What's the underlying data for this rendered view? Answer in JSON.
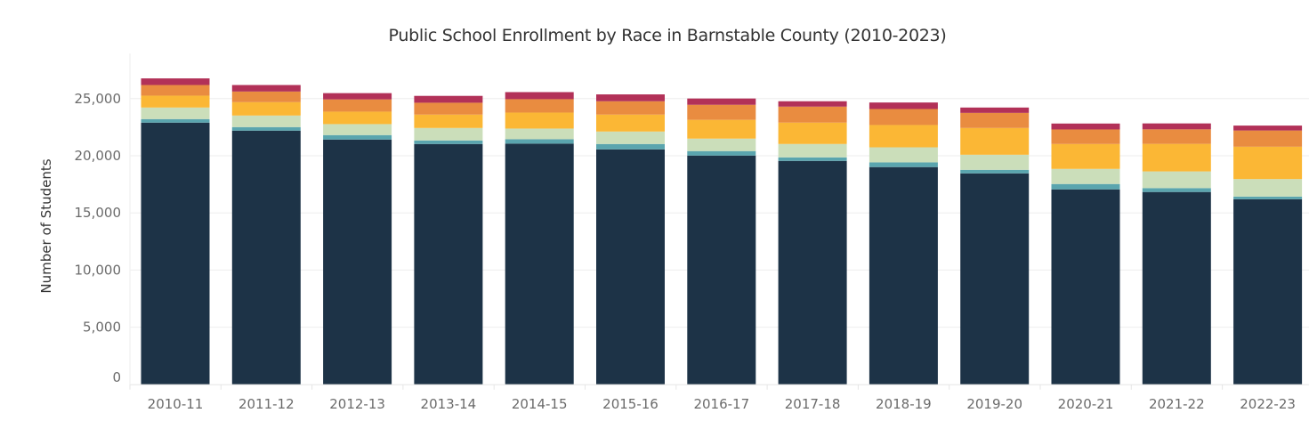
{
  "chart_data": {
    "type": "bar",
    "stacked": true,
    "title": "Public School Enrollment by Race in Barnstable County (2010-2023)",
    "xlabel": "",
    "ylabel": "Number of Students",
    "ylim": [
      0,
      27000
    ],
    "yticks": [
      0,
      5000,
      10000,
      15000,
      20000,
      25000
    ],
    "ytick_labels": [
      "0",
      "5,000",
      "10,000",
      "15,000",
      "20,000",
      "25,000"
    ],
    "grid": true,
    "legend": "none",
    "categories": [
      "2010-11",
      "2011-12",
      "2012-13",
      "2013-14",
      "2014-15",
      "2015-16",
      "2016-17",
      "2017-18",
      "2018-19",
      "2019-20",
      "2020-21",
      "2021-22",
      "2022-23"
    ],
    "series": [
      {
        "color": "#1d3347",
        "values": [
          22900,
          22200,
          21420,
          21030,
          21060,
          20560,
          20020,
          19550,
          19010,
          18460,
          17060,
          16830,
          16200
        ]
      },
      {
        "color": "#5aa5ae",
        "values": [
          310,
          310,
          390,
          310,
          390,
          470,
          390,
          310,
          410,
          310,
          470,
          340,
          230
        ]
      },
      {
        "color": "#cbdeba",
        "values": [
          1010,
          1010,
          960,
          1090,
          930,
          1090,
          1090,
          1170,
          1320,
          1320,
          1320,
          1460,
          1530
        ]
      },
      {
        "color": "#fbb735",
        "values": [
          1040,
          1170,
          1090,
          1170,
          1400,
          1480,
          1640,
          1870,
          1950,
          2340,
          2180,
          2410,
          2830
        ]
      },
      {
        "color": "#e98c40",
        "values": [
          930,
          930,
          1070,
          1040,
          1170,
          1170,
          1320,
          1400,
          1400,
          1320,
          1270,
          1270,
          1420
        ]
      },
      {
        "color": "#b23158",
        "values": [
          580,
          570,
          550,
          600,
          620,
          600,
          550,
          470,
          570,
          470,
          520,
          520,
          430
        ]
      }
    ]
  }
}
